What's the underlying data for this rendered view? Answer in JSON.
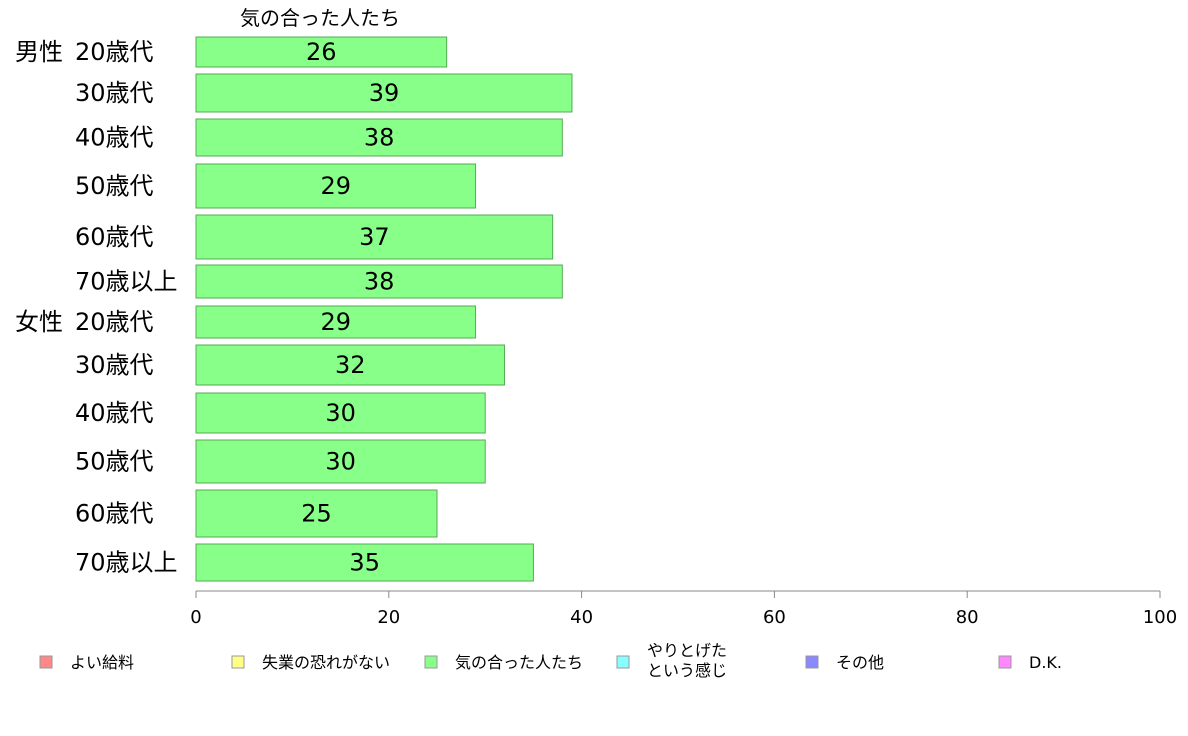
{
  "chart_data": {
    "type": "bar",
    "orientation": "horizontal",
    "title": "気の合った人たち",
    "groups": [
      {
        "label": "男性",
        "categories": [
          "20歳代",
          "30歳代",
          "40歳代",
          "50歳代",
          "60歳代",
          "70歳以上"
        ],
        "values": [
          26,
          39,
          38,
          29,
          37,
          38
        ]
      },
      {
        "label": "女性",
        "categories": [
          "20歳代",
          "30歳代",
          "40歳代",
          "50歳代",
          "60歳代",
          "70歳以上"
        ],
        "values": [
          29,
          32,
          30,
          30,
          25,
          35
        ]
      }
    ],
    "xlim": [
      0,
      100
    ],
    "xticks": [
      0,
      20,
      40,
      60,
      80,
      100
    ],
    "bar_color": "#88ff88",
    "grid": false,
    "legend_position": "bottom",
    "legend": [
      {
        "label": "よい給料",
        "color": "#ff8888"
      },
      {
        "label": "失業の恐れがない",
        "color": "#ffff88"
      },
      {
        "label": "気の合った人たち",
        "color": "#88ff88"
      },
      {
        "label": "やりとげた\nという感じ",
        "color": "#88ffff"
      },
      {
        "label": "その他",
        "color": "#8888ff"
      },
      {
        "label": "D.K.",
        "color": "#ff88ff"
      }
    ]
  }
}
